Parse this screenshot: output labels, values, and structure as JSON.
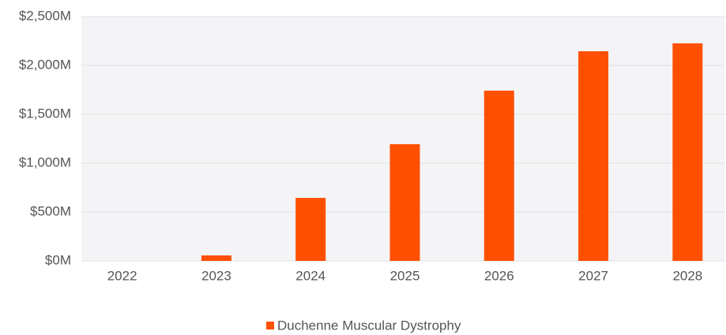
{
  "chart_data": {
    "type": "bar",
    "categories": [
      "2022",
      "2023",
      "2024",
      "2025",
      "2026",
      "2027",
      "2028"
    ],
    "series": [
      {
        "name": "Duchenne Muscular Dystrophy",
        "color": "#fe5000",
        "values": [
          0,
          56,
          645,
          1194,
          1742,
          2145,
          2226
        ]
      }
    ],
    "ylim": [
      0,
      2500
    ],
    "yticks": [
      {
        "value": 0,
        "label": "$0M"
      },
      {
        "value": 500,
        "label": "$500M"
      },
      {
        "value": 1000,
        "label": "$1,000M"
      },
      {
        "value": 1500,
        "label": "$1,500M"
      },
      {
        "value": 2000,
        "label": "$2,000M"
      },
      {
        "value": 2500,
        "label": "$2,500M"
      }
    ],
    "grid": true,
    "legend": "bottom"
  }
}
